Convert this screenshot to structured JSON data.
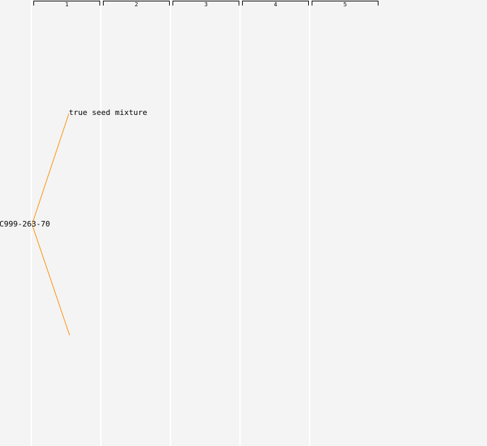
{
  "generations": [
    "1",
    "2",
    "3",
    "4",
    "5"
  ],
  "root": {
    "label": "C999-263-70"
  },
  "parents": [
    {
      "label": "true seed mixture"
    },
    {
      "label": ""
    }
  ],
  "colors": {
    "link": "#ff8c00",
    "background": "#f4f4f4"
  }
}
